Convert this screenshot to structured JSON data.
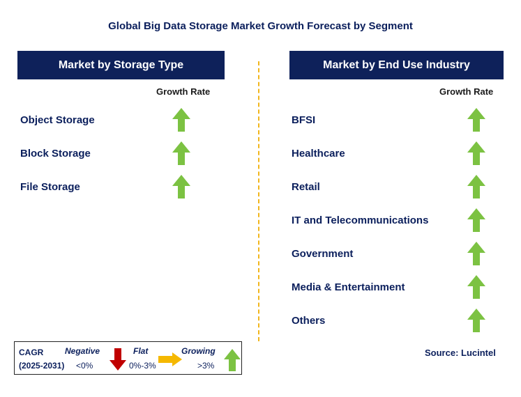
{
  "title": "Global Big Data Storage Market Growth Forecast by Segment",
  "left_panel": {
    "header": "Market by Storage Type",
    "growth_label": "Growth Rate",
    "items": [
      {
        "label": "Object Storage",
        "trend": "growing"
      },
      {
        "label": "Block Storage",
        "trend": "growing"
      },
      {
        "label": "File Storage",
        "trend": "growing"
      }
    ]
  },
  "right_panel": {
    "header": "Market by End Use Industry",
    "growth_label": "Growth Rate",
    "items": [
      {
        "label": "BFSI",
        "trend": "growing"
      },
      {
        "label": "Healthcare",
        "trend": "growing"
      },
      {
        "label": "Retail",
        "trend": "growing"
      },
      {
        "label": "IT and Telecommunications",
        "trend": "growing"
      },
      {
        "label": "Government",
        "trend": "growing"
      },
      {
        "label": "Media & Entertainment",
        "trend": "growing"
      },
      {
        "label": "Others",
        "trend": "growing"
      }
    ]
  },
  "legend": {
    "cagr_label": "CAGR",
    "period": "(2025-2031)",
    "negative": {
      "label": "Negative",
      "range": "<0%",
      "color": "#c00000",
      "icon": "arrow-down-icon"
    },
    "flat": {
      "label": "Flat",
      "range": "0%-3%",
      "color": "#f5b800",
      "icon": "arrow-right-icon"
    },
    "growing": {
      "label": "Growing",
      "range": ">3%",
      "color": "#7cc242",
      "icon": "arrow-up-icon"
    }
  },
  "source": "Source: Lucintel",
  "colors": {
    "header_bg": "#0e215a",
    "text": "#0b1f5c",
    "divider": "#f2b61c"
  }
}
